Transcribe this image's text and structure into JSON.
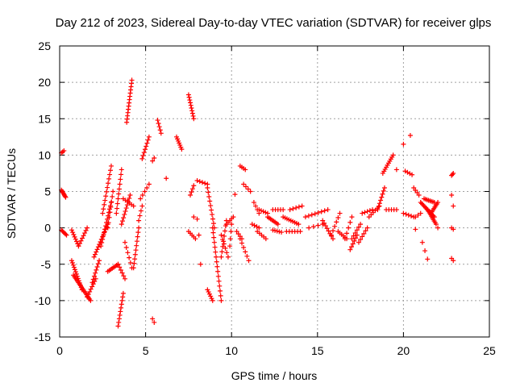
{
  "chart_data": {
    "type": "scatter",
    "title": "Day 212 of 2023, Sidereal Day-to-day VTEC variation (SDTVAR) for receiver glps",
    "xlabel": "GPS time / hours",
    "ylabel": "SDTVAR / TECUs",
    "xlim": [
      0,
      25
    ],
    "ylim": [
      -15,
      25
    ],
    "x_ticks": [
      0,
      5,
      10,
      15,
      20,
      25
    ],
    "x_tick_labels": [
      "0",
      "5",
      "10",
      "15",
      "20",
      "25"
    ],
    "y_ticks": [
      -15,
      -10,
      -5,
      0,
      5,
      10,
      15,
      20,
      25
    ],
    "y_tick_labels": [
      "-15",
      "-10",
      "-5",
      "0",
      "5",
      "10",
      "15",
      "20",
      "25"
    ],
    "grid": true,
    "marker": "+",
    "color": "#ff0000",
    "segments": [
      {
        "x0": 0.1,
        "x1": 0.25,
        "y0": 10.3,
        "y1": 10.6,
        "n": 3
      },
      {
        "x0": 0.1,
        "x1": 0.35,
        "y0": 5.2,
        "y1": 4.2,
        "n": 8
      },
      {
        "x0": 0.1,
        "x1": 0.4,
        "y0": -0.3,
        "y1": -1.0,
        "n": 6
      },
      {
        "x0": 0.7,
        "x1": 1.1,
        "y0": -0.3,
        "y1": -2.5,
        "n": 8
      },
      {
        "x0": 1.1,
        "x1": 1.6,
        "y0": -2.5,
        "y1": 0.0,
        "n": 8
      },
      {
        "x0": 0.7,
        "x1": 1.3,
        "y0": -4.5,
        "y1": -8.5,
        "n": 14
      },
      {
        "x0": 0.8,
        "x1": 1.8,
        "y0": -6.5,
        "y1": -10.0,
        "n": 18
      },
      {
        "x0": 1.6,
        "x1": 2.1,
        "y0": -9.5,
        "y1": -7.0,
        "n": 8
      },
      {
        "x0": 1.9,
        "x1": 2.3,
        "y0": -7.5,
        "y1": -4.5,
        "n": 8
      },
      {
        "x0": 2.0,
        "x1": 2.8,
        "y0": -4.0,
        "y1": 0.5,
        "n": 14
      },
      {
        "x0": 2.4,
        "x1": 3.0,
        "y0": -2.5,
        "y1": 3.5,
        "n": 14
      },
      {
        "x0": 2.5,
        "x1": 3.0,
        "y0": 2.0,
        "y1": 8.5,
        "n": 12
      },
      {
        "x0": 2.8,
        "x1": 3.1,
        "y0": 0.0,
        "y1": 5.0,
        "n": 8
      },
      {
        "x0": 2.8,
        "x1": 3.4,
        "y0": -6.0,
        "y1": -5.0,
        "n": 8
      },
      {
        "x0": 3.4,
        "x1": 3.8,
        "y0": -5.0,
        "y1": -7.0,
        "n": 6
      },
      {
        "x0": 3.4,
        "x1": 3.7,
        "y0": -13.5,
        "y1": -9.0,
        "n": 10
      },
      {
        "x0": 3.3,
        "x1": 3.6,
        "y0": 2.0,
        "y1": 8.0,
        "n": 10
      },
      {
        "x0": 3.6,
        "x1": 4.1,
        "y0": 0.5,
        "y1": 4.5,
        "n": 10
      },
      {
        "x0": 3.7,
        "x1": 4.3,
        "y0": 4.0,
        "y1": 3.0,
        "n": 6
      },
      {
        "x0": 3.8,
        "x1": 4.2,
        "y0": -2.0,
        "y1": -5.5,
        "n": 6
      },
      {
        "x0": 3.9,
        "x1": 4.2,
        "y0": 14.5,
        "y1": 20.3,
        "n": 14
      },
      {
        "x0": 4.3,
        "x1": 4.6,
        "y0": -5.5,
        "y1": 0.0,
        "n": 10
      },
      {
        "x0": 4.6,
        "x1": 4.8,
        "y0": 1.0,
        "y1": 3.0,
        "n": 4
      },
      {
        "x0": 4.7,
        "x1": 5.2,
        "y0": 4.0,
        "y1": 6.0,
        "n": 5
      },
      {
        "x0": 4.8,
        "x1": 5.2,
        "y0": 9.5,
        "y1": 12.5,
        "n": 8
      },
      {
        "x0": 5.4,
        "x1": 5.5,
        "y0": -12.5,
        "y1": -13.0,
        "n": 2
      },
      {
        "x0": 5.4,
        "x1": 5.5,
        "y0": 9.2,
        "y1": 9.6,
        "n": 2
      },
      {
        "x0": 5.7,
        "x1": 5.9,
        "y0": 14.8,
        "y1": 13.0,
        "n": 5
      },
      {
        "x0": 6.2,
        "x1": 6.2,
        "y0": 6.8,
        "y1": 6.8,
        "n": 1
      },
      {
        "x0": 6.8,
        "x1": 7.1,
        "y0": 12.5,
        "y1": 10.8,
        "n": 7
      },
      {
        "x0": 7.5,
        "x1": 7.8,
        "y0": 18.3,
        "y1": 15.0,
        "n": 10
      },
      {
        "x0": 7.6,
        "x1": 7.8,
        "y0": 4.5,
        "y1": 5.8,
        "n": 4
      },
      {
        "x0": 7.5,
        "x1": 7.9,
        "y0": -0.5,
        "y1": -1.5,
        "n": 5
      },
      {
        "x0": 8.0,
        "x1": 8.6,
        "y0": 6.5,
        "y1": 6.0,
        "n": 5
      },
      {
        "x0": 7.8,
        "x1": 8.0,
        "y0": 1.5,
        "y1": 1.2,
        "n": 2
      },
      {
        "x0": 8.1,
        "x1": 8.2,
        "y0": -1.0,
        "y1": -5.0,
        "n": 2
      },
      {
        "x0": 8.6,
        "x1": 9.0,
        "y0": 5.5,
        "y1": 0.0,
        "n": 10
      },
      {
        "x0": 8.6,
        "x1": 8.9,
        "y0": -8.5,
        "y1": -10.0,
        "n": 6
      },
      {
        "x0": 8.9,
        "x1": 9.4,
        "y0": 0.0,
        "y1": -10.0,
        "n": 16
      },
      {
        "x0": 9.4,
        "x1": 9.7,
        "y0": -4.0,
        "y1": 1.0,
        "n": 8
      },
      {
        "x0": 9.4,
        "x1": 9.8,
        "y0": -1.0,
        "y1": -4.0,
        "n": 6
      },
      {
        "x0": 9.7,
        "x1": 10.1,
        "y0": 0.5,
        "y1": 1.5,
        "n": 5
      },
      {
        "x0": 9.9,
        "x1": 10.0,
        "y0": -2.5,
        "y1": 0.5,
        "n": 4
      },
      {
        "x0": 10.2,
        "x1": 10.3,
        "y0": 4.6,
        "y1": 4.6,
        "n": 1
      },
      {
        "x0": 10.5,
        "x1": 10.8,
        "y0": 8.5,
        "y1": 8.0,
        "n": 4
      },
      {
        "x0": 10.3,
        "x1": 10.6,
        "y0": -0.5,
        "y1": -1.5,
        "n": 4
      },
      {
        "x0": 10.5,
        "x1": 11.0,
        "y0": -1.5,
        "y1": -4.5,
        "n": 6
      },
      {
        "x0": 10.7,
        "x1": 11.1,
        "y0": 6.0,
        "y1": 5.0,
        "n": 4
      },
      {
        "x0": 11.3,
        "x1": 11.6,
        "y0": 3.5,
        "y1": 2.0,
        "n": 4
      },
      {
        "x0": 11.2,
        "x1": 11.6,
        "y0": 0.5,
        "y1": 0.0,
        "n": 4
      },
      {
        "x0": 11.5,
        "x1": 12.0,
        "y0": -0.5,
        "y1": -1.5,
        "n": 5
      },
      {
        "x0": 11.6,
        "x1": 12.1,
        "y0": 2.5,
        "y1": 2.0,
        "n": 5
      },
      {
        "x0": 12.1,
        "x1": 12.7,
        "y0": 1.5,
        "y1": 0.5,
        "n": 8
      },
      {
        "x0": 12.4,
        "x1": 12.9,
        "y0": -0.3,
        "y1": -0.6,
        "n": 5
      },
      {
        "x0": 12.4,
        "x1": 13.0,
        "y0": 2.5,
        "y1": 2.5,
        "n": 5
      },
      {
        "x0": 13.0,
        "x1": 13.9,
        "y0": 1.5,
        "y1": 0.5,
        "n": 9
      },
      {
        "x0": 13.2,
        "x1": 14.0,
        "y0": -0.5,
        "y1": -0.5,
        "n": 6
      },
      {
        "x0": 13.4,
        "x1": 14.1,
        "y0": 2.5,
        "y1": 3.0,
        "n": 5
      },
      {
        "x0": 14.3,
        "x1": 15.6,
        "y0": 1.5,
        "y1": 2.5,
        "n": 8
      },
      {
        "x0": 14.5,
        "x1": 15.3,
        "y0": 0.0,
        "y1": 0.5,
        "n": 4
      },
      {
        "x0": 15.3,
        "x1": 15.9,
        "y0": 1.0,
        "y1": -1.5,
        "n": 8
      },
      {
        "x0": 15.8,
        "x1": 16.3,
        "y0": -1.0,
        "y1": 2.0,
        "n": 6
      },
      {
        "x0": 16.2,
        "x1": 16.7,
        "y0": -0.5,
        "y1": -1.5,
        "n": 6
      },
      {
        "x0": 16.6,
        "x1": 17.0,
        "y0": -1.5,
        "y1": 1.5,
        "n": 5
      },
      {
        "x0": 16.9,
        "x1": 17.3,
        "y0": -3.0,
        "y1": -1.0,
        "n": 6
      },
      {
        "x0": 17.0,
        "x1": 17.5,
        "y0": -1.5,
        "y1": 0.5,
        "n": 6
      },
      {
        "x0": 17.4,
        "x1": 17.9,
        "y0": -2.0,
        "y1": 0.0,
        "n": 6
      },
      {
        "x0": 17.6,
        "x1": 18.2,
        "y0": 2.0,
        "y1": 2.5,
        "n": 5
      },
      {
        "x0": 18.0,
        "x1": 18.6,
        "y0": 1.5,
        "y1": 3.0,
        "n": 6
      },
      {
        "x0": 18.5,
        "x1": 18.9,
        "y0": 2.5,
        "y1": 5.5,
        "n": 8
      },
      {
        "x0": 18.8,
        "x1": 19.4,
        "y0": 7.5,
        "y1": 10.0,
        "n": 10
      },
      {
        "x0": 19.0,
        "x1": 19.6,
        "y0": 2.5,
        "y1": 2.5,
        "n": 5
      },
      {
        "x0": 19.6,
        "x1": 19.9,
        "y0": 8.0,
        "y1": 8.0,
        "n": 1
      },
      {
        "x0": 20.0,
        "x1": 20.4,
        "y0": 11.5,
        "y1": 12.7,
        "n": 2
      },
      {
        "x0": 20.1,
        "x1": 20.5,
        "y0": 7.8,
        "y1": 7.3,
        "n": 4
      },
      {
        "x0": 20.0,
        "x1": 20.6,
        "y0": 2.0,
        "y1": 1.5,
        "n": 5
      },
      {
        "x0": 20.6,
        "x1": 20.9,
        "y0": 5.5,
        "y1": 4.5,
        "n": 4
      },
      {
        "x0": 20.7,
        "x1": 21.0,
        "y0": 1.5,
        "y1": 2.0,
        "n": 3
      },
      {
        "x0": 20.7,
        "x1": 20.8,
        "y0": -0.2,
        "y1": -0.2,
        "n": 1
      },
      {
        "x0": 21.0,
        "x1": 21.8,
        "y0": 3.5,
        "y1": 1.5,
        "n": 14
      },
      {
        "x0": 21.2,
        "x1": 21.8,
        "y0": 4.0,
        "y1": 3.5,
        "n": 8
      },
      {
        "x0": 21.1,
        "x1": 21.4,
        "y0": -2.0,
        "y1": -4.3,
        "n": 3
      },
      {
        "x0": 21.4,
        "x1": 21.9,
        "y0": 2.5,
        "y1": 0.5,
        "n": 10
      },
      {
        "x0": 21.6,
        "x1": 22.0,
        "y0": 2.0,
        "y1": 3.5,
        "n": 8
      },
      {
        "x0": 22.0,
        "x1": 22.2,
        "y0": 0.0,
        "y1": 0.0,
        "n": 1
      },
      {
        "x0": 22.8,
        "x1": 22.9,
        "y0": 7.2,
        "y1": 7.5,
        "n": 3
      },
      {
        "x0": 22.8,
        "x1": 22.9,
        "y0": 4.5,
        "y1": 3.0,
        "n": 2
      },
      {
        "x0": 22.8,
        "x1": 22.9,
        "y0": 0.0,
        "y1": -0.2,
        "n": 2
      },
      {
        "x0": 22.8,
        "x1": 22.9,
        "y0": -4.2,
        "y1": -4.5,
        "n": 2
      }
    ]
  }
}
